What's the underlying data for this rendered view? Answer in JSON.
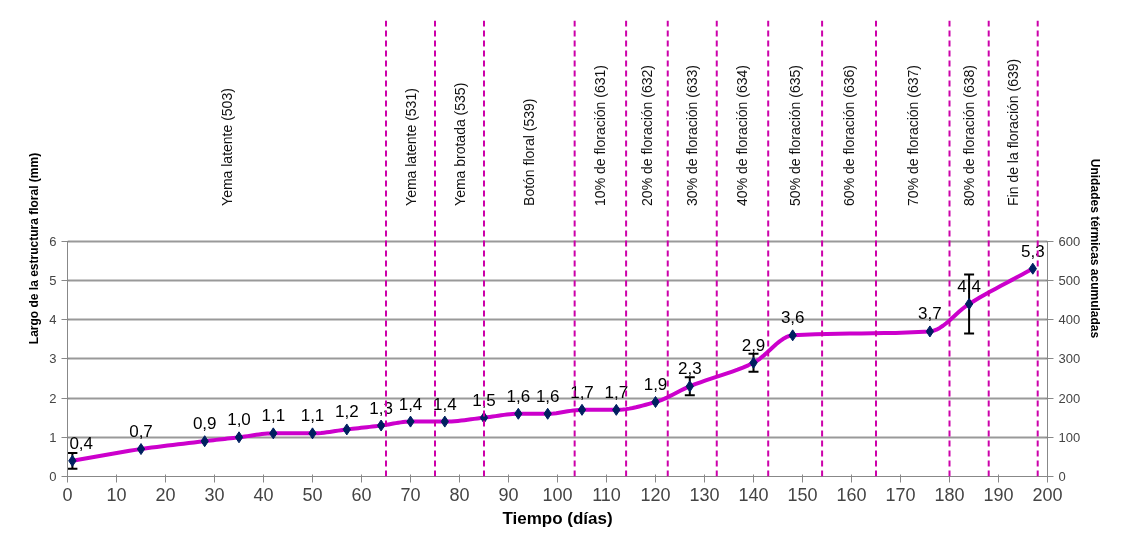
{
  "chart_data": {
    "type": "line",
    "xlabel": "Tiempo (días)",
    "ylabel": "Largo de la estructura floral (mm)",
    "y2label": "Unidades térmicas acumuladas",
    "x": [
      1,
      15,
      28,
      35,
      42,
      50,
      57,
      64,
      70,
      77,
      85,
      92,
      98,
      105,
      112,
      120,
      127,
      140,
      148,
      176,
      184,
      197
    ],
    "series": [
      {
        "color": "#cc00cc",
        "values": [
          0.4,
          0.7,
          0.9,
          1.0,
          1.1,
          1.1,
          1.2,
          1.3,
          1.4,
          1.4,
          1.5,
          1.6,
          1.6,
          1.7,
          1.7,
          1.9,
          2.3,
          2.9,
          3.6,
          3.7,
          4.4,
          5.3
        ],
        "errors": [
          0.2,
          null,
          null,
          null,
          null,
          null,
          null,
          null,
          null,
          null,
          null,
          null,
          null,
          null,
          null,
          null,
          0.23,
          0.23,
          null,
          null,
          0.75,
          null
        ],
        "value_labels": [
          "0,4",
          "0,7",
          "0,9",
          "1,0",
          "1,1",
          "1,1",
          "1,2",
          "1,3",
          "1,4",
          "1,4",
          "1,5",
          "1,6",
          "1,6",
          "1,7",
          "1,7",
          "1,9",
          "2,3",
          "2,9",
          "3,6",
          "3,7",
          "4,4",
          "5,3"
        ]
      }
    ],
    "marker": "diamond",
    "line_style": "solid",
    "grid": "y",
    "xlim": [
      0,
      200
    ],
    "xticks": [
      0,
      10,
      20,
      30,
      40,
      50,
      60,
      70,
      80,
      90,
      100,
      110,
      120,
      130,
      140,
      150,
      160,
      170,
      180,
      190,
      200
    ],
    "ylim": [
      0,
      6
    ],
    "yticks": [
      0,
      1,
      2,
      3,
      4,
      5,
      6
    ],
    "y2lim": [
      0,
      600
    ],
    "y2ticks": [
      0,
      100,
      200,
      300,
      400,
      500,
      600
    ],
    "ref_lines": [
      {
        "axis": "x",
        "value": 65,
        "label": null,
        "color": "#cc00aa",
        "line_style": "dashed"
      },
      {
        "axis": "x",
        "value": 75,
        "label": null,
        "color": "#cc00aa",
        "line_style": "dashed"
      },
      {
        "axis": "x",
        "value": 85,
        "label": null,
        "color": "#cc00aa",
        "line_style": "dashed"
      },
      {
        "axis": "x",
        "value": 103.5,
        "label": null,
        "color": "#cc00aa",
        "line_style": "dashed"
      },
      {
        "axis": "x",
        "value": 114,
        "label": null,
        "color": "#cc00aa",
        "line_style": "dashed"
      },
      {
        "axis": "x",
        "value": 122.5,
        "label": null,
        "color": "#cc00aa",
        "line_style": "dashed"
      },
      {
        "axis": "x",
        "value": 132.5,
        "label": null,
        "color": "#cc00aa",
        "line_style": "dashed"
      },
      {
        "axis": "x",
        "value": 143,
        "label": null,
        "color": "#cc00aa",
        "line_style": "dashed"
      },
      {
        "axis": "x",
        "value": 154,
        "label": null,
        "color": "#cc00aa",
        "line_style": "dashed"
      },
      {
        "axis": "x",
        "value": 165,
        "label": null,
        "color": "#cc00aa",
        "line_style": "dashed"
      },
      {
        "axis": "x",
        "value": 180,
        "label": null,
        "color": "#cc00aa",
        "line_style": "dashed"
      },
      {
        "axis": "x",
        "value": 188,
        "label": null,
        "color": "#cc00aa",
        "line_style": "dashed"
      },
      {
        "axis": "x",
        "value": 198,
        "label": null,
        "color": "#cc00aa",
        "line_style": "dashed"
      }
    ],
    "annotations": [
      "Yema latente (503)",
      "Yema latente (531)",
      "Yema brotada (535)",
      "Botón floral (539)",
      "10% de floración (631)",
      "20% de floración (632)",
      "30% de floración (633)",
      "40% de floración (634)",
      "50% de floración (635)",
      "60% de floración (636)",
      "70% de floración (637)",
      "80% de floración (638)",
      "Fin de la floración (639)"
    ]
  }
}
